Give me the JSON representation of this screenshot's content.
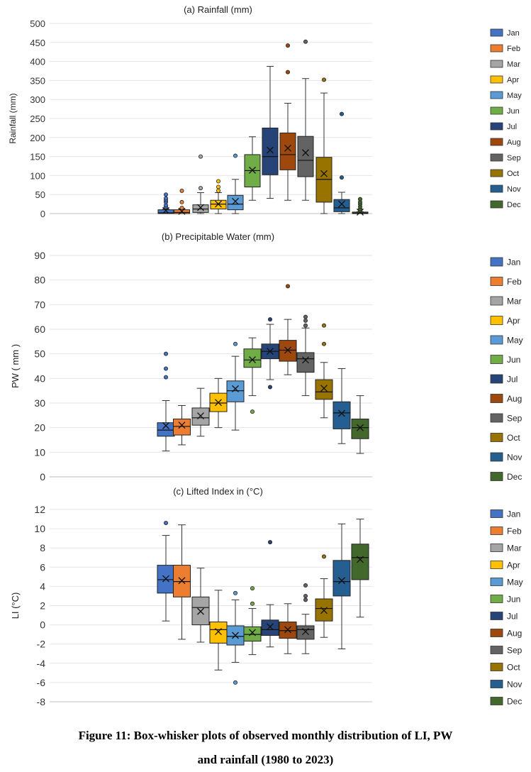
{
  "months": [
    "Jan",
    "Feb",
    "Mar",
    "Apr",
    "May",
    "Jun",
    "Jul",
    "Aug",
    "Sep",
    "Oct",
    "Nov",
    "Dec"
  ],
  "colors": {
    "Jan": "#4472C4",
    "Feb": "#ED7D31",
    "Mar": "#A5A5A5",
    "Apr": "#FFC000",
    "May": "#5B9BD5",
    "Jun": "#70AD47",
    "Jul": "#264478",
    "Aug": "#9E480E",
    "Sep": "#636363",
    "Oct": "#997300",
    "Nov": "#255E91",
    "Dec": "#43682B"
  },
  "caption": {
    "line1": "Figure 11: Box-whisker plots of observed monthly distribution of LI, PW",
    "line2": "and rainfall (1980 to 2023)"
  },
  "chart_data": [
    {
      "type": "box",
      "title": "(a) Rainfall (mm)",
      "ylabel": "Rainfall (mm)",
      "ylim": [
        0,
        500
      ],
      "yticks": [
        0,
        50,
        100,
        150,
        200,
        250,
        300,
        350,
        400,
        450,
        500
      ],
      "ytick_labels": [
        "0",
        "50",
        "100",
        "150",
        "200",
        "250",
        "300",
        "350",
        "400",
        "450",
        "500"
      ],
      "legend": "right",
      "boxes": [
        {
          "month": "Jan",
          "min": 0,
          "q1": 0,
          "median": 2,
          "q3": 10,
          "max": 12,
          "mean": 8,
          "outliers": [
            17,
            22,
            30,
            35,
            40,
            50
          ]
        },
        {
          "month": "Feb",
          "min": 0,
          "q1": 0,
          "median": 3,
          "q3": 10,
          "max": 12,
          "mean": 6,
          "outliers": [
            15,
            30,
            60
          ]
        },
        {
          "month": "Mar",
          "min": 0,
          "q1": 3,
          "median": 12,
          "q3": 23,
          "max": 55,
          "mean": 16,
          "outliers": [
            67,
            150
          ]
        },
        {
          "month": "Apr",
          "min": 0,
          "q1": 12,
          "median": 25,
          "q3": 35,
          "max": 55,
          "mean": 25,
          "outliers": [
            60,
            70,
            85
          ]
        },
        {
          "month": "May",
          "min": 0,
          "q1": 10,
          "median": 25,
          "q3": 48,
          "max": 90,
          "mean": 32,
          "outliers": [
            152
          ]
        },
        {
          "month": "Jun",
          "min": 35,
          "q1": 70,
          "median": 113,
          "q3": 155,
          "max": 202,
          "mean": 114,
          "outliers": []
        },
        {
          "month": "Jul",
          "min": 40,
          "q1": 102,
          "median": 150,
          "q3": 225,
          "max": 387,
          "mean": 167,
          "outliers": []
        },
        {
          "month": "Aug",
          "min": 35,
          "q1": 115,
          "median": 155,
          "q3": 212,
          "max": 290,
          "mean": 172,
          "outliers": [
            372,
            442
          ]
        },
        {
          "month": "Sep",
          "min": 35,
          "q1": 97,
          "median": 140,
          "q3": 203,
          "max": 355,
          "mean": 160,
          "outliers": [
            452
          ]
        },
        {
          "month": "Oct",
          "min": 0,
          "q1": 30,
          "median": 90,
          "q3": 148,
          "max": 317,
          "mean": 105,
          "outliers": [
            352
          ]
        },
        {
          "month": "Nov",
          "min": 0,
          "q1": 5,
          "median": 15,
          "q3": 37,
          "max": 56,
          "mean": 25,
          "outliers": [
            95,
            262
          ]
        },
        {
          "month": "Dec",
          "min": 0,
          "q1": 0,
          "median": 1,
          "q3": 4,
          "max": 5,
          "mean": 4,
          "outliers": [
            8,
            12,
            18,
            25,
            30,
            38
          ]
        }
      ]
    },
    {
      "type": "box",
      "title": "(b) Precipitable Water (mm)",
      "ylabel": "PW ( mm )",
      "ylim": [
        0,
        90
      ],
      "yticks": [
        0,
        10,
        20,
        30,
        40,
        50,
        60,
        70,
        80,
        90
      ],
      "ytick_labels": [
        "0",
        "10",
        "20",
        "30",
        "40",
        "50",
        "60",
        "70",
        "80",
        "90"
      ],
      "legend": "right",
      "boxes": [
        {
          "month": "Jan",
          "min": 10.5,
          "q1": 16.5,
          "median": 19,
          "q3": 22,
          "max": 31,
          "mean": 20.8,
          "outliers": [
            40.5,
            44,
            50
          ]
        },
        {
          "month": "Feb",
          "min": 13,
          "q1": 17,
          "median": 20.5,
          "q3": 23.5,
          "max": 29,
          "mean": 21,
          "outliers": []
        },
        {
          "month": "Mar",
          "min": 16.5,
          "q1": 21,
          "median": 24,
          "q3": 28,
          "max": 36,
          "mean": 24.8,
          "outliers": []
        },
        {
          "month": "Apr",
          "min": 20,
          "q1": 26.5,
          "median": 30,
          "q3": 34,
          "max": 40,
          "mean": 30.2,
          "outliers": []
        },
        {
          "month": "May",
          "min": 19,
          "q1": 30.5,
          "median": 35,
          "q3": 39,
          "max": 49,
          "mean": 35.8,
          "outliers": [
            54
          ]
        },
        {
          "month": "Jun",
          "min": 33,
          "q1": 44.5,
          "median": 47.5,
          "q3": 52,
          "max": 56.5,
          "mean": 47.6,
          "outliers": [
            26.5
          ]
        },
        {
          "month": "Jul",
          "min": 39.5,
          "q1": 48,
          "median": 51,
          "q3": 54,
          "max": 62,
          "mean": 51,
          "outliers": [
            36.5,
            64
          ]
        },
        {
          "month": "Aug",
          "min": 41.5,
          "q1": 47,
          "median": 51.5,
          "q3": 55.5,
          "max": 64,
          "mean": 51.5,
          "outliers": [
            77.5
          ]
        },
        {
          "month": "Sep",
          "min": 33,
          "q1": 42.5,
          "median": 48,
          "q3": 50.5,
          "max": 60.5,
          "mean": 47.5,
          "outliers": [
            61.5,
            63.5,
            65
          ]
        },
        {
          "month": "Oct",
          "min": 24,
          "q1": 31.5,
          "median": 34.5,
          "q3": 39.5,
          "max": 46.5,
          "mean": 36,
          "outliers": [
            54,
            61.5
          ]
        },
        {
          "month": "Nov",
          "min": 13.5,
          "q1": 19.5,
          "median": 26,
          "q3": 30.5,
          "max": 44,
          "mean": 25.8,
          "outliers": []
        },
        {
          "month": "Dec",
          "min": 9.5,
          "q1": 15.5,
          "median": 20,
          "q3": 23.5,
          "max": 33,
          "mean": 20,
          "outliers": []
        }
      ]
    },
    {
      "type": "box",
      "title": "(c) Lifted Index in (°C)",
      "ylabel": "LI (°C)",
      "ylim": [
        -8,
        12
      ],
      "yticks": [
        -8,
        -6,
        -4,
        -2,
        0,
        2,
        4,
        6,
        8,
        10,
        12
      ],
      "ytick_labels": [
        "-8",
        "-6",
        "-4",
        "-2",
        "0",
        "2",
        "4",
        "6",
        "8",
        "10",
        "12"
      ],
      "legend": "right",
      "boxes": [
        {
          "month": "Jan",
          "min": 0.4,
          "q1": 3.3,
          "median": 4.7,
          "q3": 6.2,
          "max": 9.3,
          "mean": 4.8,
          "outliers": [
            10.6
          ]
        },
        {
          "month": "Feb",
          "min": -1.5,
          "q1": 2.9,
          "median": 4.5,
          "q3": 6.2,
          "max": 10.4,
          "mean": 4.6,
          "outliers": []
        },
        {
          "month": "Mar",
          "min": -1.8,
          "q1": 0,
          "median": 1.8,
          "q3": 2.9,
          "max": 5.9,
          "mean": 1.4,
          "outliers": []
        },
        {
          "month": "Apr",
          "min": -4.7,
          "q1": -1.9,
          "median": -0.5,
          "q3": 0.3,
          "max": 3.6,
          "mean": -0.7,
          "outliers": []
        },
        {
          "month": "May",
          "min": -3.9,
          "q1": -2.1,
          "median": -1.2,
          "q3": -0.1,
          "max": 2.6,
          "mean": -1.1,
          "outliers": [
            3.3,
            -6
          ]
        },
        {
          "month": "Jun",
          "min": -3.1,
          "q1": -1.7,
          "median": -1.0,
          "q3": -0.2,
          "max": 1.7,
          "mean": -0.8,
          "outliers": [
            2.2,
            3.8
          ]
        },
        {
          "month": "Jul",
          "min": -2.3,
          "q1": -1.1,
          "median": -0.5,
          "q3": 0.5,
          "max": 2.1,
          "mean": -0.2,
          "outliers": [
            8.6
          ]
        },
        {
          "month": "Aug",
          "min": -3.0,
          "q1": -1.4,
          "median": -0.6,
          "q3": 0.3,
          "max": 2.2,
          "mean": -0.5,
          "outliers": []
        },
        {
          "month": "Sep",
          "min": -3.0,
          "q1": -1.5,
          "median": -0.5,
          "q3": -0.1,
          "max": 1.1,
          "mean": -0.7,
          "outliers": [
            2.6,
            3.0,
            4.1
          ]
        },
        {
          "month": "Oct",
          "min": -1.3,
          "q1": 0.4,
          "median": 1.7,
          "q3": 2.7,
          "max": 4.8,
          "mean": 1.5,
          "outliers": [
            7.1
          ]
        },
        {
          "month": "Nov",
          "min": -2.5,
          "q1": 3.0,
          "median": 4.5,
          "q3": 6.7,
          "max": 10.5,
          "mean": 4.6,
          "outliers": []
        },
        {
          "month": "Dec",
          "min": 0.8,
          "q1": 4.7,
          "median": 7.0,
          "q3": 8.4,
          "max": 11.0,
          "mean": 6.8,
          "outliers": []
        }
      ]
    }
  ]
}
